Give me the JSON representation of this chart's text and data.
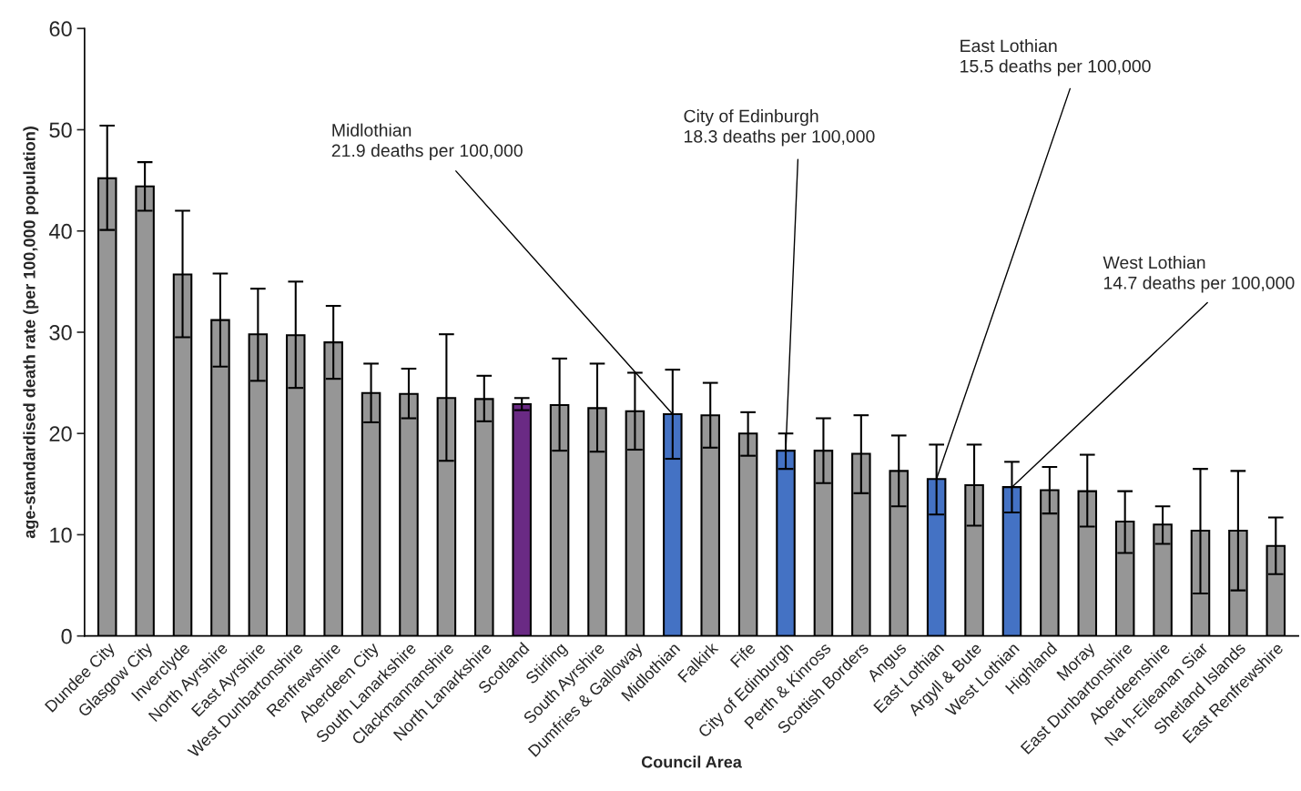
{
  "chart_data": {
    "type": "bar",
    "xlabel": "Council Area",
    "ylabel": "age-standardised death rate (per 100,000 population)",
    "categories": [
      "Dundee City",
      "Glasgow City",
      "Inverclyde",
      "North Ayrshire",
      "East Ayrshire",
      "West Dunbartonshire",
      "Renfrewshire",
      "Aberdeen City",
      "South Lanarkshire",
      "Clackmannanshire",
      "North Lanarkshire",
      "Scotland",
      "Stirling",
      "South Ayrshire",
      "Dumfries & Galloway",
      "Midlothian",
      "Falkirk",
      "Fife",
      "City of Edinburgh",
      "Perth & Kinross",
      "Scottish Borders",
      "Angus",
      "East Lothian",
      "Argyll & Bute",
      "West Lothian",
      "Highland",
      "Moray",
      "East Dunbartonshire",
      "Aberdeenshire",
      "Na h-Eileanan Siar",
      "Shetland Islands",
      "East Renfrewshire"
    ],
    "values": [
      45.2,
      44.4,
      35.7,
      31.2,
      29.8,
      29.7,
      29.0,
      24.0,
      23.9,
      23.5,
      23.4,
      22.9,
      22.8,
      22.5,
      22.2,
      21.9,
      21.8,
      20.0,
      18.3,
      18.3,
      18.0,
      16.3,
      15.5,
      14.9,
      14.7,
      14.4,
      14.3,
      11.3,
      11.0,
      10.4,
      10.4,
      8.9
    ],
    "errors": [
      [
        40.1,
        50.4
      ],
      [
        42.0,
        46.8
      ],
      [
        29.5,
        42.0
      ],
      [
        26.6,
        35.8
      ],
      [
        25.2,
        34.3
      ],
      [
        24.5,
        35.0
      ],
      [
        25.4,
        32.6
      ],
      [
        21.1,
        26.9
      ],
      [
        21.5,
        26.4
      ],
      [
        17.3,
        29.8
      ],
      [
        21.2,
        25.7
      ],
      [
        22.3,
        23.5
      ],
      [
        18.3,
        27.4
      ],
      [
        18.2,
        26.9
      ],
      [
        18.4,
        26.0
      ],
      [
        17.5,
        26.3
      ],
      [
        18.6,
        25.0
      ],
      [
        17.8,
        22.1
      ],
      [
        16.5,
        20.0
      ],
      [
        15.1,
        21.5
      ],
      [
        14.1,
        21.8
      ],
      [
        12.8,
        19.8
      ],
      [
        12.0,
        18.9
      ],
      [
        10.9,
        18.9
      ],
      [
        12.2,
        17.2
      ],
      [
        12.1,
        16.7
      ],
      [
        10.8,
        17.9
      ],
      [
        8.2,
        14.3
      ],
      [
        9.1,
        12.8
      ],
      [
        4.2,
        16.5
      ],
      [
        4.5,
        16.3
      ],
      [
        6.1,
        11.7
      ]
    ],
    "colors": [
      "#969696",
      "#969696",
      "#969696",
      "#969696",
      "#969696",
      "#969696",
      "#969696",
      "#969696",
      "#969696",
      "#969696",
      "#969696",
      "#6a2a84",
      "#969696",
      "#969696",
      "#969696",
      "#4472c4",
      "#969696",
      "#969696",
      "#4472c4",
      "#969696",
      "#969696",
      "#969696",
      "#4472c4",
      "#969696",
      "#4472c4",
      "#969696",
      "#969696",
      "#969696",
      "#969696",
      "#969696",
      "#969696",
      "#969696"
    ],
    "ylim": [
      0,
      60
    ],
    "yticks": [
      0,
      10,
      20,
      30,
      40,
      50,
      60
    ],
    "grid": false,
    "annotations": [
      {
        "text": "Midlothian\n21.9 deaths per 100,000",
        "x": "Midlothian",
        "y": 21.9
      },
      {
        "text": "City of Edinburgh\n18.3 deaths per 100,000",
        "x": "City of Edinburgh",
        "y": 18.3
      },
      {
        "text": "East Lothian\n15.5 deaths per 100,000",
        "x": "East Lothian",
        "y": 15.5
      },
      {
        "text": "West Lothian\n14.7 deaths per 100,000",
        "x": "West Lothian",
        "y": 14.7
      }
    ]
  }
}
